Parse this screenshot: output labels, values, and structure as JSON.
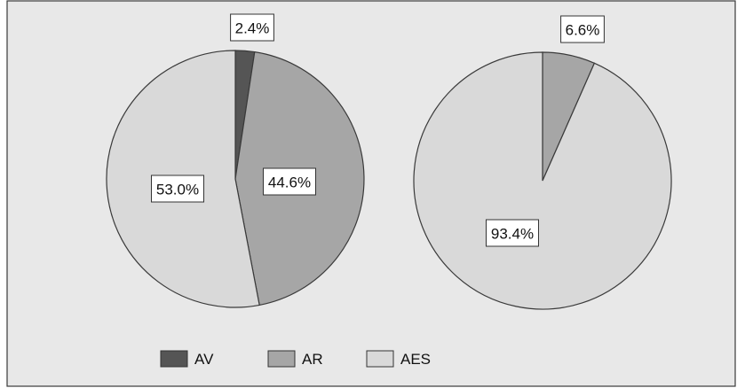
{
  "chart_data": [
    {
      "type": "pie",
      "start_angle_deg": 0,
      "direction": "clockwise",
      "slices": [
        {
          "label": "AV",
          "value": 2.4,
          "display": "2.4%",
          "color": "#555555",
          "label_placement": "outside"
        },
        {
          "label": "AR",
          "value": 44.6,
          "display": "44.6%",
          "color": "#a6a6a6",
          "label_placement": "inside"
        },
        {
          "label": "AES",
          "value": 53.0,
          "display": "53.0%",
          "color": "#d9d9d9",
          "label_placement": "inside"
        }
      ]
    },
    {
      "type": "pie",
      "start_angle_deg": 0,
      "direction": "clockwise",
      "slices": [
        {
          "label": "AR",
          "value": 6.6,
          "display": "6.6%",
          "color": "#a6a6a6",
          "label_placement": "outside"
        },
        {
          "label": "AES",
          "value": 93.4,
          "display": "93.4%",
          "color": "#d9d9d9",
          "label_placement": "inside"
        }
      ]
    }
  ],
  "legend": {
    "placement": "bottom",
    "entries": [
      {
        "label": "AV",
        "color": "#555555"
      },
      {
        "label": "AR",
        "color": "#a6a6a6"
      },
      {
        "label": "AES",
        "color": "#d9d9d9"
      }
    ]
  },
  "colors": {
    "plot_background": "#e8e8e8",
    "frame": "#3a3a3a",
    "slice_stroke": "#3a3a3a"
  }
}
